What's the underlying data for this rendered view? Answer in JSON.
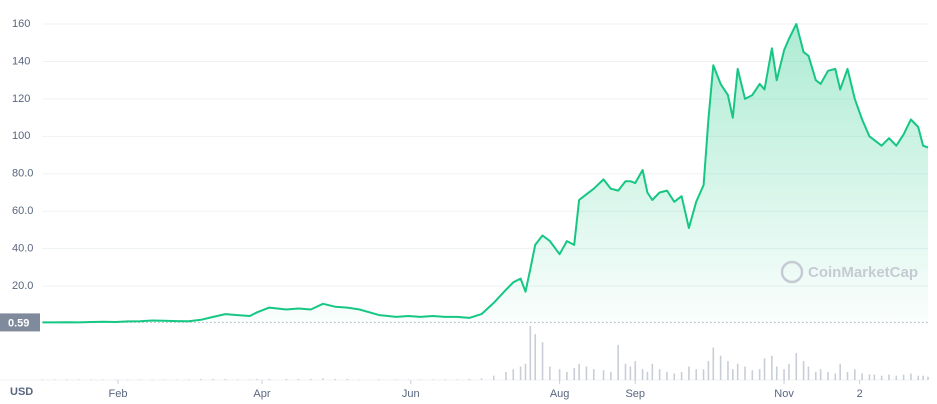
{
  "chart_data": {
    "type": "line",
    "watermark": "CoinMarketCap",
    "currency": "USD",
    "reference_value": 0.59,
    "x": [
      0,
      5,
      10,
      15,
      20,
      25,
      30,
      35,
      40,
      45,
      50,
      55,
      60,
      65,
      70,
      75,
      80,
      85,
      88,
      93,
      100,
      105,
      110,
      115,
      120,
      125,
      130,
      138,
      145,
      150,
      155,
      160,
      165,
      170,
      175,
      180,
      185,
      190,
      193,
      196,
      198,
      200,
      202,
      205,
      208,
      212,
      215,
      218,
      220,
      223,
      226,
      230,
      233,
      236,
      239,
      241,
      243,
      246,
      248,
      250,
      253,
      256,
      259,
      262,
      265,
      268,
      271,
      273,
      275,
      278,
      281,
      283,
      285,
      288,
      291,
      294,
      296,
      299,
      301,
      304,
      306,
      309,
      312,
      314,
      317,
      319,
      322,
      325,
      327,
      330,
      333,
      336,
      339,
      341,
      344,
      347,
      350,
      353,
      356,
      359,
      361,
      363
    ],
    "series": [
      {
        "color": "#16c784",
        "values": [
          0.6,
          0.6,
          0.7,
          0.6,
          0.8,
          0.9,
          0.8,
          1.1,
          1.2,
          1.6,
          1.5,
          1.3,
          1.2,
          2,
          3.5,
          5,
          4.5,
          4,
          6,
          8.5,
          7.5,
          8,
          7.5,
          10.5,
          9,
          8.5,
          7.5,
          4.5,
          3.5,
          4,
          3.5,
          4,
          3.5,
          3.5,
          3,
          5,
          11,
          18,
          22,
          24,
          17,
          29,
          42,
          47,
          44,
          37,
          44,
          42,
          66,
          69,
          72,
          77,
          72,
          71,
          76,
          76,
          75,
          82,
          70,
          66,
          70,
          71,
          65,
          68,
          51,
          65,
          74,
          109,
          138,
          128,
          122,
          110,
          136,
          120,
          122,
          128,
          125,
          147,
          130,
          146,
          152,
          160,
          145,
          143,
          130,
          128,
          135,
          136,
          125,
          136,
          120,
          109,
          100,
          98,
          95,
          99,
          95,
          101,
          109,
          105,
          95,
          94
        ]
      }
    ],
    "volume": {
      "color": "#c9ced6",
      "values": [
        1,
        1,
        1,
        1,
        1,
        1,
        1,
        1,
        1,
        1,
        1,
        1,
        1,
        2,
        2,
        2,
        1,
        1,
        2,
        2,
        2,
        2,
        2,
        3,
        2,
        2,
        1,
        1,
        1,
        1,
        1,
        1,
        1,
        1,
        2,
        3,
        8,
        15,
        20,
        25,
        30,
        100,
        85,
        70,
        25,
        20,
        15,
        22,
        30,
        25,
        20,
        18,
        15,
        65,
        30,
        25,
        35,
        20,
        15,
        30,
        20,
        15,
        12,
        15,
        25,
        20,
        20,
        35,
        60,
        45,
        35,
        20,
        30,
        25,
        18,
        20,
        40,
        45,
        25,
        20,
        30,
        50,
        35,
        25,
        15,
        20,
        15,
        12,
        30,
        15,
        20,
        12,
        10,
        10,
        8,
        10,
        8,
        10,
        12,
        8,
        8,
        6
      ]
    },
    "xlim": [
      0,
      363
    ],
    "xticks": [
      {
        "value": 31,
        "label": "Feb"
      },
      {
        "value": 90,
        "label": "Apr"
      },
      {
        "value": 151,
        "label": "Jun"
      },
      {
        "value": 212,
        "label": "Aug"
      },
      {
        "value": 243,
        "label": "Sep"
      },
      {
        "value": 304,
        "label": "Nov"
      },
      {
        "value": 335,
        "label": "2"
      }
    ],
    "ylim": [
      0,
      160
    ],
    "yticks": [
      {
        "value": 20,
        "label": "20.0"
      },
      {
        "value": 40,
        "label": "40.0"
      },
      {
        "value": 60,
        "label": "60.0"
      },
      {
        "value": 80,
        "label": "80.0"
      },
      100,
      120,
      140,
      160
    ],
    "grid": true
  }
}
